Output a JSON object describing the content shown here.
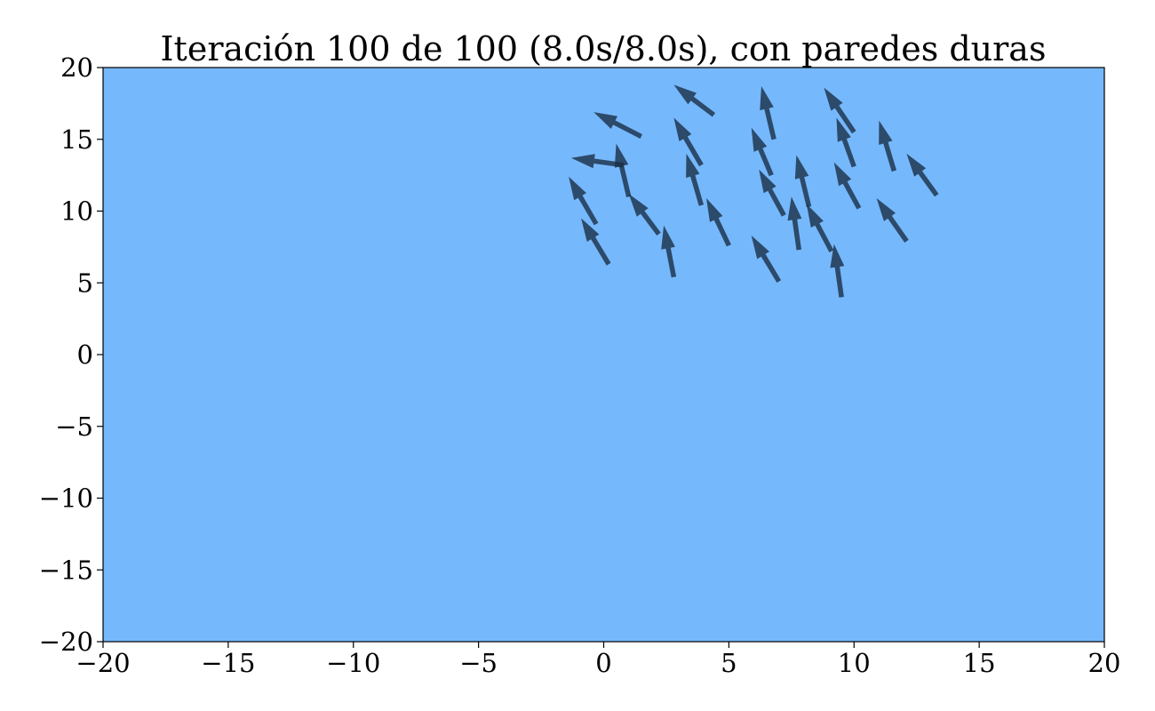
{
  "chart_data": {
    "type": "quiver",
    "title": "Iteración 100 de 100 (8.0s/8.0s), con paredes duras",
    "xlabel": "",
    "ylabel": "",
    "xlim": [
      -20,
      20
    ],
    "ylim": [
      -20,
      20
    ],
    "xticks": [
      -20,
      -15,
      -10,
      -5,
      0,
      5,
      10,
      15,
      20
    ],
    "yticks": [
      -20,
      -15,
      -10,
      -5,
      0,
      5,
      10,
      15,
      20
    ],
    "xtick_labels": [
      "−20",
      "−15",
      "−10",
      "−5",
      "0",
      "5",
      "10",
      "15",
      "20"
    ],
    "ytick_labels": [
      "−20",
      "−15",
      "−10",
      "−5",
      "0",
      "5",
      "10",
      "15",
      "20"
    ],
    "grid": false,
    "background_color": "#76b8fc",
    "arrow_color": "#1a2e45",
    "arrow_opacity": 0.8,
    "arrows": [
      {
        "x0": 4.4,
        "y0": 16.7,
        "x1": 2.8,
        "y1": 18.8
      },
      {
        "x0": 1.5,
        "y0": 15.2,
        "x1": -0.4,
        "y1": 16.9
      },
      {
        "x0": 0.8,
        "y0": 13.2,
        "x1": -1.3,
        "y1": 13.7
      },
      {
        "x0": 1.0,
        "y0": 11.0,
        "x1": 0.5,
        "y1": 14.7
      },
      {
        "x0": -0.3,
        "y0": 9.1,
        "x1": -1.4,
        "y1": 12.4
      },
      {
        "x0": 0.2,
        "y0": 6.3,
        "x1": -0.9,
        "y1": 9.5
      },
      {
        "x0": 2.2,
        "y0": 8.4,
        "x1": 1.0,
        "y1": 11.2
      },
      {
        "x0": 2.8,
        "y0": 5.4,
        "x1": 2.4,
        "y1": 9.0
      },
      {
        "x0": 3.9,
        "y0": 13.2,
        "x1": 2.8,
        "y1": 16.5
      },
      {
        "x0": 3.9,
        "y0": 10.4,
        "x1": 3.3,
        "y1": 14.0
      },
      {
        "x0": 5.0,
        "y0": 7.6,
        "x1": 4.1,
        "y1": 10.9
      },
      {
        "x0": 6.8,
        "y0": 15.0,
        "x1": 6.3,
        "y1": 18.7
      },
      {
        "x0": 6.7,
        "y0": 12.5,
        "x1": 5.9,
        "y1": 15.8
      },
      {
        "x0": 7.2,
        "y0": 9.7,
        "x1": 6.2,
        "y1": 12.9
      },
      {
        "x0": 7.0,
        "y0": 5.1,
        "x1": 5.9,
        "y1": 8.3
      },
      {
        "x0": 8.2,
        "y0": 10.3,
        "x1": 7.7,
        "y1": 13.9
      },
      {
        "x0": 7.8,
        "y0": 7.3,
        "x1": 7.5,
        "y1": 11.0
      },
      {
        "x0": 9.1,
        "y0": 7.2,
        "x1": 8.1,
        "y1": 10.5
      },
      {
        "x0": 10.0,
        "y0": 15.5,
        "x1": 8.8,
        "y1": 18.6
      },
      {
        "x0": 10.0,
        "y0": 13.1,
        "x1": 9.3,
        "y1": 16.5
      },
      {
        "x0": 10.2,
        "y0": 10.2,
        "x1": 9.2,
        "y1": 13.4
      },
      {
        "x0": 9.5,
        "y0": 4.0,
        "x1": 9.2,
        "y1": 7.7
      },
      {
        "x0": 11.6,
        "y0": 12.8,
        "x1": 11.0,
        "y1": 16.3
      },
      {
        "x0": 12.1,
        "y0": 7.9,
        "x1": 10.9,
        "y1": 10.9
      },
      {
        "x0": 13.3,
        "y0": 11.1,
        "x1": 12.1,
        "y1": 14.0
      }
    ]
  }
}
